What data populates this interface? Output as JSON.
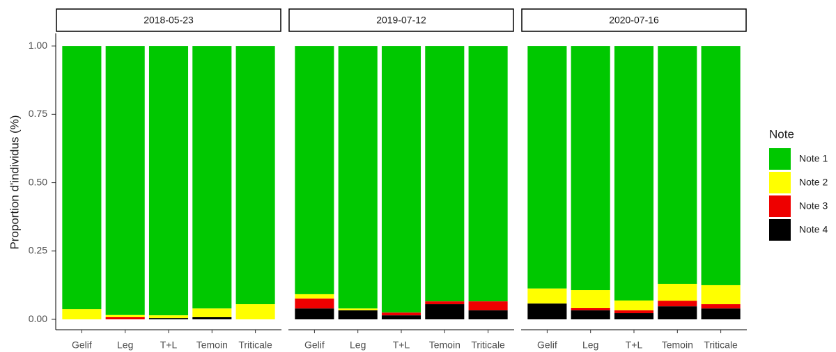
{
  "chart_data": {
    "type": "bar",
    "stacked": true,
    "ylabel": "Proportion d'individus (%)",
    "legend_title": "Note",
    "facets": [
      "2018-05-23",
      "2019-07-12",
      "2020-07-16"
    ],
    "categories": [
      "Gelif",
      "Leg",
      "T+L",
      "Temoin",
      "Triticale"
    ],
    "ylim": [
      -0.038,
      1.046
    ],
    "yticks": [
      {
        "value": 0,
        "label": "0.00"
      },
      0.25,
      {
        "value": 0.5,
        "label": "0.50"
      },
      0.75,
      {
        "value": 1,
        "label": "1.00"
      }
    ],
    "series": [
      {
        "name": "Note 1",
        "color": "#00c800",
        "values": [
          [
            0.962,
            0.984,
            0.985,
            0.96,
            0.944
          ],
          [
            0.908,
            0.96,
            0.975,
            0.934,
            0.934
          ],
          [
            0.887,
            0.893,
            0.931,
            0.87,
            0.875
          ]
        ]
      },
      {
        "name": "Note 2",
        "color": "#ffff00",
        "values": [
          [
            0.038,
            0.008,
            0.01,
            0.032,
            0.056
          ],
          [
            0.016,
            0.007,
            0,
            0,
            0
          ],
          [
            0.055,
            0.066,
            0.036,
            0.062,
            0.069
          ]
        ]
      },
      {
        "name": "Note 3",
        "color": "#ee0000",
        "values": [
          [
            0,
            0.008,
            0,
            0,
            0
          ],
          [
            0.036,
            0,
            0.01,
            0.01,
            0.033
          ],
          [
            0,
            0.008,
            0.01,
            0.02,
            0.016
          ]
        ]
      },
      {
        "name": "Note 4",
        "color": "#000000",
        "values": [
          [
            0,
            0,
            0.005,
            0.008,
            0
          ],
          [
            0.04,
            0.033,
            0.015,
            0.056,
            0.033
          ],
          [
            0.058,
            0.033,
            0.023,
            0.048,
            0.04
          ]
        ]
      }
    ]
  }
}
